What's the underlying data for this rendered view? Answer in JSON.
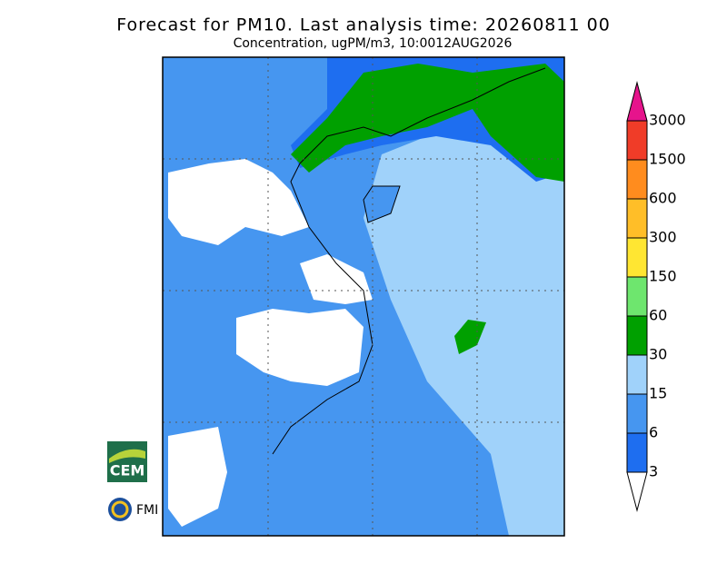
{
  "header": {
    "title": "Forecast for PM10. Last analysis time: 20260811 00",
    "subtitle": "Concentration, ugPM/m3, 10:0012AUG2026"
  },
  "legend": {
    "ticks": [
      3,
      6,
      15,
      30,
      60,
      150,
      300,
      600,
      1500,
      3000
    ],
    "colors": [
      "#ffffff",
      "#1e6ef0",
      "#4696f0",
      "#a0d2fa",
      "#00a000",
      "#6ee66e",
      "#ffe632",
      "#ffbe28",
      "#ff8c1e",
      "#f03c28",
      "#e6148c"
    ]
  },
  "logos": [
    "CEM",
    "FMI"
  ]
}
